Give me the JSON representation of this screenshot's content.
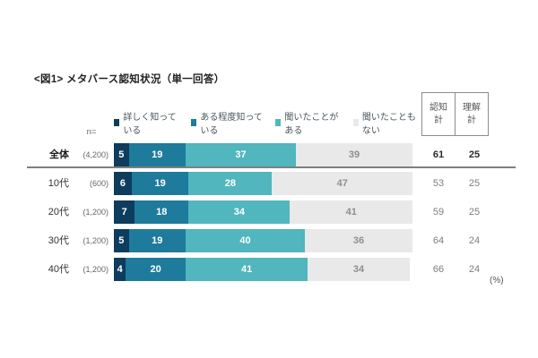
{
  "title": "<図1> メタバース認知状況（単一回答）",
  "n_header": "n=",
  "unit_label": "(%)",
  "colors": {
    "know_well": "#0d3c5c",
    "know_somewhat": "#1e7b9c",
    "heard_of": "#51b6bd",
    "never_heard": "#e9e9e9",
    "separator": "#7f7f7f",
    "box_border": "#8c8c8c"
  },
  "legend": [
    {
      "label": "詳しく知っている",
      "color": "#0d3c5c"
    },
    {
      "label": "ある程度知っている",
      "color": "#1e7b9c"
    },
    {
      "label": "聞いたことがある",
      "color": "#51b6bd"
    },
    {
      "label": "聞いたこともない",
      "color": "#e9e9e9"
    }
  ],
  "summary_columns": [
    {
      "label": "認知\n計"
    },
    {
      "label": "理解\n計"
    }
  ],
  "rows": [
    {
      "label": "全体",
      "n": "(4,200)",
      "values": [
        5,
        19,
        37,
        39
      ],
      "totals": [
        61,
        25
      ],
      "emphasis": true
    },
    {
      "label": "10代",
      "n": "(600)",
      "values": [
        6,
        19,
        28,
        47
      ],
      "totals": [
        53,
        25
      ],
      "emphasis": false
    },
    {
      "label": "20代",
      "n": "(1,200)",
      "values": [
        7,
        18,
        34,
        41
      ],
      "totals": [
        59,
        25
      ],
      "emphasis": false
    },
    {
      "label": "30代",
      "n": "(1,200)",
      "values": [
        5,
        19,
        40,
        36
      ],
      "totals": [
        64,
        24
      ],
      "emphasis": false
    },
    {
      "label": "40代",
      "n": "(1,200)",
      "values": [
        4,
        20,
        41,
        34
      ],
      "totals": [
        66,
        24
      ],
      "emphasis": false
    }
  ],
  "chart_data": {
    "type": "bar",
    "orientation": "horizontal-stacked",
    "title": "<図1> メタバース認知状況（単一回答）",
    "categories": [
      "全体",
      "10代",
      "20代",
      "30代",
      "40代"
    ],
    "sample_sizes": [
      4200,
      600,
      1200,
      1200,
      1200
    ],
    "series": [
      {
        "name": "詳しく知っている",
        "color": "#0d3c5c",
        "values": [
          5,
          6,
          7,
          5,
          4
        ]
      },
      {
        "name": "ある程度知っている",
        "color": "#1e7b9c",
        "values": [
          19,
          19,
          18,
          19,
          20
        ]
      },
      {
        "name": "聞いたことがある",
        "color": "#51b6bd",
        "values": [
          37,
          28,
          34,
          40,
          41
        ]
      },
      {
        "name": "聞いたこともない",
        "color": "#e9e9e9",
        "values": [
          39,
          47,
          41,
          36,
          34
        ]
      }
    ],
    "awareness_total": {
      "label": "認知計",
      "values": [
        61,
        53,
        59,
        64,
        66
      ]
    },
    "understanding_total": {
      "label": "理解計",
      "values": [
        25,
        25,
        25,
        24,
        24
      ]
    },
    "xlim": [
      0,
      100
    ],
    "unit": "%",
    "grid": false,
    "legend_position": "top"
  }
}
